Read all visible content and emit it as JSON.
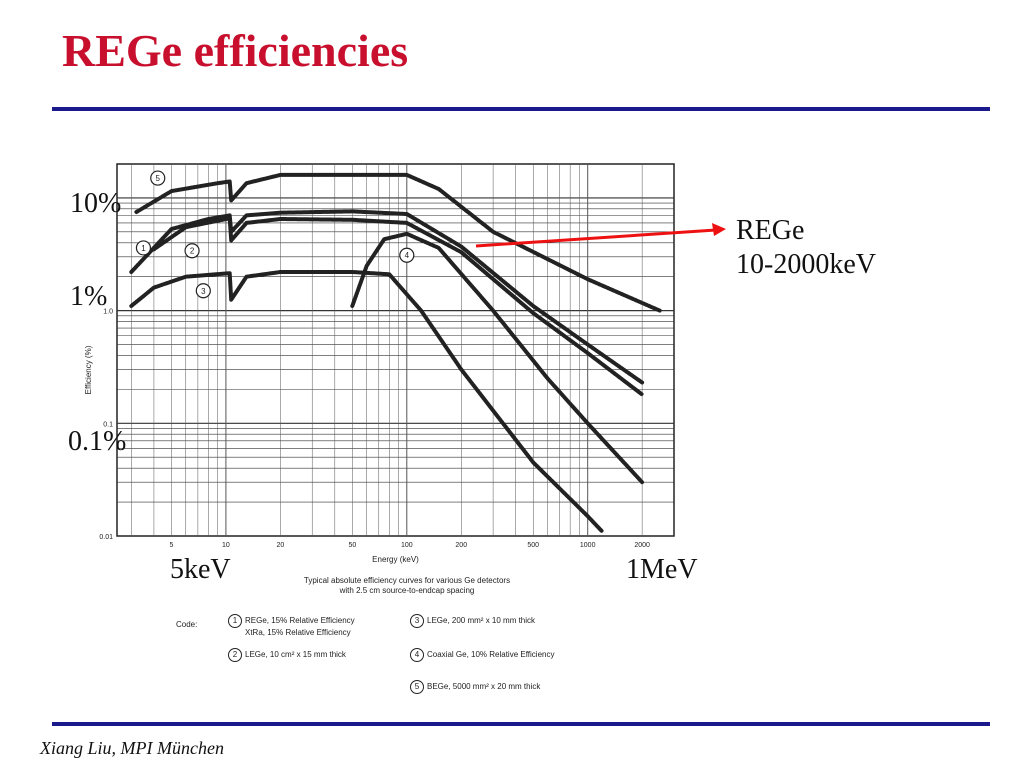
{
  "slide": {
    "title": "REGe efficiencies",
    "footer": "Xiang Liu, MPI München"
  },
  "annotations": {
    "y_10": "10%",
    "y_1": "1%",
    "y_01": "0.1%",
    "x_low": "5keV",
    "x_high": "1MeV",
    "rege_line1": "REGe",
    "rege_line2": "10-2000keV",
    "arrow_color": "#ee1111"
  },
  "figure": {
    "caption_line1": "Typical absolute efficiency curves for various Ge detectors",
    "caption_line2": "with 2.5 cm source-to-endcap spacing",
    "legend_code": "Code:",
    "legend": [
      {
        "num": "1",
        "text": "REGe, 15% Relative Efficiency"
      },
      {
        "num": "",
        "text": "XtRa, 15% Relative Efficiency"
      },
      {
        "num": "2",
        "text": "LEGe, 10 cm² x 15 mm thick"
      },
      {
        "num": "3",
        "text": "LEGe, 200 mm² x 10 mm thick"
      },
      {
        "num": "4",
        "text": "Coaxial Ge, 10% Relative Efficiency"
      },
      {
        "num": "5",
        "text": "BEGe, 5000 mm² x 20 mm thick"
      }
    ]
  },
  "chart_data": {
    "type": "line",
    "xlabel": "Energy (keV)",
    "ylabel": "Efficiency (%)",
    "x_scale": "log",
    "y_scale": "log",
    "xlim": [
      2.5,
      3000
    ],
    "ylim": [
      0.01,
      20
    ],
    "x_ticks": [
      5,
      10,
      20,
      50,
      100,
      200,
      500,
      1000,
      2000
    ],
    "x_tick_labels": [
      "5",
      "10",
      "20",
      "50",
      "100",
      "200",
      "500",
      "1000",
      "2000"
    ],
    "y_ticks": [
      0.01,
      0.1,
      1.0
    ],
    "y_tick_labels": [
      "0.01",
      "0.1",
      "1.0"
    ],
    "grid": true,
    "series": [
      {
        "name": "5",
        "color": "#222222",
        "points": [
          [
            3.2,
            7.5
          ],
          [
            5,
            11.5
          ],
          [
            9,
            13.5
          ],
          [
            10.5,
            14
          ],
          [
            10.7,
            9.5
          ],
          [
            13,
            13.5
          ],
          [
            20,
            16
          ],
          [
            50,
            16
          ],
          [
            100,
            16
          ],
          [
            150,
            12
          ],
          [
            300,
            5
          ],
          [
            1000,
            1.9
          ],
          [
            2500,
            1.0
          ]
        ]
      },
      {
        "name": "1",
        "color": "#222222",
        "points": [
          [
            3,
            2.2
          ],
          [
            5,
            5.3
          ],
          [
            8,
            6.5
          ],
          [
            10.5,
            7
          ],
          [
            10.7,
            5
          ],
          [
            13,
            7
          ],
          [
            20,
            7.4
          ],
          [
            50,
            7.6
          ],
          [
            100,
            7.2
          ],
          [
            200,
            3.7
          ],
          [
            500,
            1.1
          ],
          [
            1000,
            0.5
          ],
          [
            2000,
            0.23
          ]
        ]
      },
      {
        "name": "2",
        "color": "#222222",
        "points": [
          [
            4,
            3.5
          ],
          [
            6,
            5.5
          ],
          [
            10.5,
            6.6
          ],
          [
            10.7,
            4.2
          ],
          [
            13,
            6
          ],
          [
            20,
            6.5
          ],
          [
            50,
            6.4
          ],
          [
            100,
            6
          ],
          [
            200,
            3.3
          ],
          [
            500,
            0.95
          ],
          [
            1000,
            0.42
          ],
          [
            2000,
            0.18
          ]
        ]
      },
      {
        "name": "3",
        "color": "#222222",
        "points": [
          [
            3,
            1.1
          ],
          [
            4,
            1.6
          ],
          [
            6,
            2
          ],
          [
            10.5,
            2.15
          ],
          [
            10.7,
            1.25
          ],
          [
            13,
            2
          ],
          [
            20,
            2.2
          ],
          [
            50,
            2.2
          ],
          [
            80,
            2.1
          ],
          [
            120,
            1.0
          ],
          [
            200,
            0.3
          ],
          [
            500,
            0.045
          ],
          [
            1000,
            0.015
          ],
          [
            1200,
            0.011
          ]
        ]
      },
      {
        "name": "4",
        "color": "#222222",
        "points": [
          [
            50,
            1.1
          ],
          [
            60,
            2.5
          ],
          [
            75,
            4.3
          ],
          [
            100,
            4.8
          ],
          [
            150,
            3.6
          ],
          [
            300,
            1.0
          ],
          [
            600,
            0.25
          ],
          [
            1000,
            0.1
          ],
          [
            2000,
            0.03
          ]
        ]
      }
    ]
  }
}
